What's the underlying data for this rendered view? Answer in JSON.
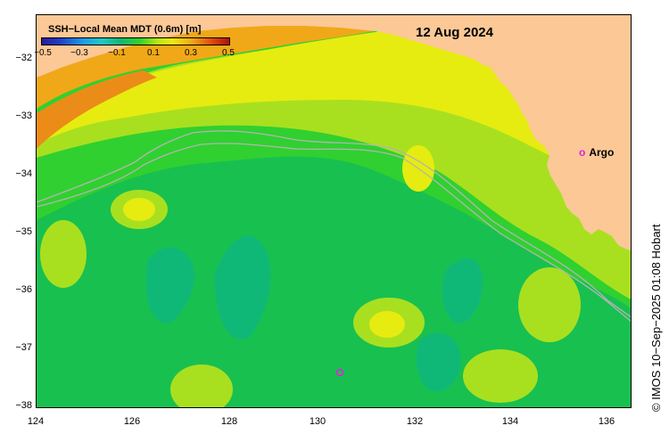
{
  "title": "12 Aug 2024",
  "colorbar": {
    "label": "SSH−Local Mean MDT (0.6m) [m]",
    "ticks": [
      "−0.5",
      "−0.3",
      "−0.1",
      "0.1",
      "0.3",
      "0.5"
    ],
    "colors": [
      "#2a1a9a",
      "#2040c8",
      "#1e9be8",
      "#20c8c8",
      "#10b870",
      "#30d030",
      "#b8e818",
      "#f0e810",
      "#f0a818",
      "#e05010",
      "#b01010"
    ]
  },
  "axes": {
    "lat_labels": [
      "−32",
      "−33",
      "−34",
      "−35",
      "−36",
      "−37",
      "−38"
    ],
    "lon_labels": [
      "124",
      "126",
      "128",
      "130",
      "132",
      "134",
      "136"
    ]
  },
  "legend": {
    "argo_symbol": "o",
    "argo_label": "Argo"
  },
  "credit": "© IMOS 10−Sep−2025 01:08 Hobart",
  "colors": {
    "land": "#fcc896",
    "bathymetry_line": "#b4b4b4",
    "argo": "#e020e0"
  }
}
